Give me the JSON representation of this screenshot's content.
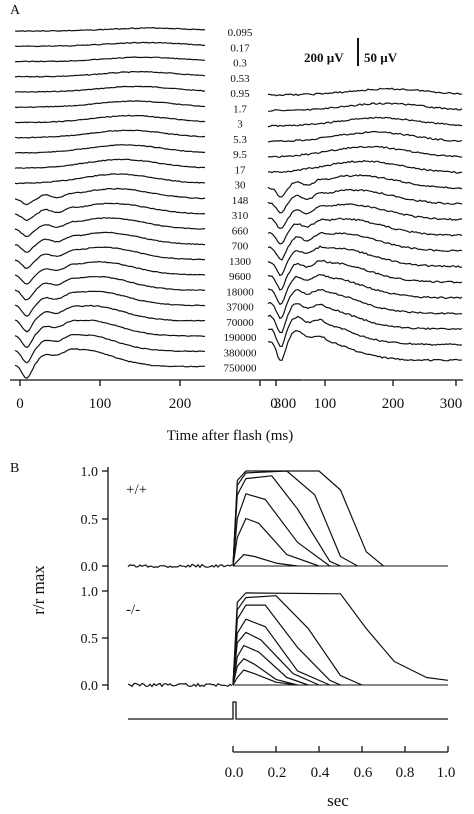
{
  "panel_a": {
    "label": "A",
    "intensities": [
      "0.095",
      "0.17",
      "0.3",
      "0.53",
      "0.95",
      "1.7",
      "3",
      "5.3",
      "9.5",
      "17",
      "30",
      "148",
      "310",
      "660",
      "700",
      "1300",
      "9600",
      "18000",
      "37000",
      "70000",
      "190000",
      "380000",
      "750000"
    ],
    "scale_left": "200 µV",
    "scale_right": "50 µV",
    "xlabel": "Time after flash (ms)",
    "x_ticks": [
      "0",
      "100",
      "200",
      "300"
    ]
  },
  "panel_b": {
    "label": "B",
    "ylabel": "r/r max",
    "xlabel": "sec",
    "x_ticks": [
      "0.0",
      "0.2",
      "0.4",
      "0.6",
      "0.8",
      "1.0"
    ],
    "y_ticks": [
      "1.0",
      "0.5",
      "0.0"
    ],
    "top_label": "+/+",
    "bottom_label": "-/-"
  },
  "chart_data": [
    {
      "type": "line",
      "panel": "A-left",
      "xlabel": "Time after flash (ms)",
      "xlim": [
        0,
        300
      ],
      "series_names": [
        "0.095",
        "0.17",
        "0.3",
        "0.53",
        "0.95",
        "1.7",
        "3",
        "5.3",
        "9.5",
        "17",
        "30",
        "148",
        "310",
        "660",
        "700",
        "1300",
        "9600",
        "18000",
        "37000",
        "70000",
        "190000",
        "380000",
        "750000"
      ]
    },
    {
      "type": "line",
      "panel": "A-right",
      "xlabel": "Time after flash (ms)",
      "xlim": [
        0,
        300
      ],
      "series_names": [
        "148",
        "310",
        "660",
        "700",
        "1300",
        "9600",
        "18000",
        "37000",
        "70000",
        "190000",
        "380000",
        "750000"
      ]
    },
    {
      "type": "line",
      "panel": "B +/+",
      "ylabel": "r/r max",
      "xlabel": "sec",
      "xlim": [
        0,
        1
      ],
      "ylim": [
        0,
        1
      ],
      "series": [
        {
          "values": [
            [
              0,
              0
            ],
            [
              0.02,
              0.05
            ],
            [
              0.05,
              0.12
            ],
            [
              0.1,
              0.1
            ],
            [
              0.2,
              0.03
            ],
            [
              0.3,
              0
            ]
          ]
        },
        {
          "values": [
            [
              0,
              0
            ],
            [
              0.02,
              0.3
            ],
            [
              0.06,
              0.5
            ],
            [
              0.12,
              0.45
            ],
            [
              0.25,
              0.12
            ],
            [
              0.4,
              0
            ]
          ]
        },
        {
          "values": [
            [
              0,
              0
            ],
            [
              0.02,
              0.5
            ],
            [
              0.06,
              0.76
            ],
            [
              0.15,
              0.7
            ],
            [
              0.3,
              0.25
            ],
            [
              0.45,
              0
            ]
          ]
        },
        {
          "values": [
            [
              0,
              0
            ],
            [
              0.02,
              0.75
            ],
            [
              0.06,
              0.92
            ],
            [
              0.18,
              0.95
            ],
            [
              0.3,
              0.6
            ],
            [
              0.45,
              0.05
            ],
            [
              0.5,
              0
            ]
          ]
        },
        {
          "values": [
            [
              0,
              0
            ],
            [
              0.02,
              0.85
            ],
            [
              0.06,
              0.98
            ],
            [
              0.25,
              1.0
            ],
            [
              0.38,
              0.75
            ],
            [
              0.5,
              0.1
            ],
            [
              0.58,
              0
            ]
          ]
        },
        {
          "values": [
            [
              0,
              0
            ],
            [
              0.02,
              0.9
            ],
            [
              0.06,
              1.0
            ],
            [
              0.4,
              1.0
            ],
            [
              0.5,
              0.8
            ],
            [
              0.62,
              0.15
            ],
            [
              0.7,
              0
            ]
          ]
        }
      ]
    },
    {
      "type": "line",
      "panel": "B -/-",
      "ylabel": "r/r max",
      "xlabel": "sec",
      "xlim": [
        0,
        1
      ],
      "ylim": [
        0,
        1
      ],
      "series": [
        {
          "values": [
            [
              0,
              0
            ],
            [
              0.02,
              0.08
            ],
            [
              0.05,
              0.16
            ],
            [
              0.1,
              0.12
            ],
            [
              0.2,
              0.03
            ],
            [
              0.3,
              0
            ]
          ]
        },
        {
          "values": [
            [
              0,
              0
            ],
            [
              0.02,
              0.2
            ],
            [
              0.05,
              0.28
            ],
            [
              0.1,
              0.22
            ],
            [
              0.2,
              0.06
            ],
            [
              0.3,
              0
            ]
          ]
        },
        {
          "values": [
            [
              0,
              0
            ],
            [
              0.02,
              0.3
            ],
            [
              0.05,
              0.42
            ],
            [
              0.12,
              0.35
            ],
            [
              0.25,
              0.08
            ],
            [
              0.35,
              0
            ]
          ]
        },
        {
          "values": [
            [
              0,
              0
            ],
            [
              0.02,
              0.45
            ],
            [
              0.06,
              0.56
            ],
            [
              0.13,
              0.48
            ],
            [
              0.28,
              0.12
            ],
            [
              0.4,
              0
            ]
          ]
        },
        {
          "values": [
            [
              0,
              0
            ],
            [
              0.02,
              0.55
            ],
            [
              0.06,
              0.7
            ],
            [
              0.15,
              0.62
            ],
            [
              0.3,
              0.15
            ],
            [
              0.45,
              0
            ]
          ]
        },
        {
          "values": [
            [
              0,
              0
            ],
            [
              0.02,
              0.7
            ],
            [
              0.06,
              0.85
            ],
            [
              0.15,
              0.85
            ],
            [
              0.3,
              0.4
            ],
            [
              0.45,
              0.05
            ],
            [
              0.5,
              0
            ]
          ]
        },
        {
          "values": [
            [
              0,
              0
            ],
            [
              0.02,
              0.8
            ],
            [
              0.06,
              0.93
            ],
            [
              0.2,
              0.95
            ],
            [
              0.35,
              0.6
            ],
            [
              0.5,
              0.1
            ],
            [
              0.6,
              0
            ]
          ]
        },
        {
          "values": [
            [
              0,
              0
            ],
            [
              0.02,
              0.88
            ],
            [
              0.06,
              0.98
            ],
            [
              0.5,
              0.97
            ],
            [
              0.62,
              0.6
            ],
            [
              0.75,
              0.25
            ],
            [
              0.9,
              0.08
            ],
            [
              1.0,
              0.05
            ]
          ]
        }
      ]
    }
  ]
}
